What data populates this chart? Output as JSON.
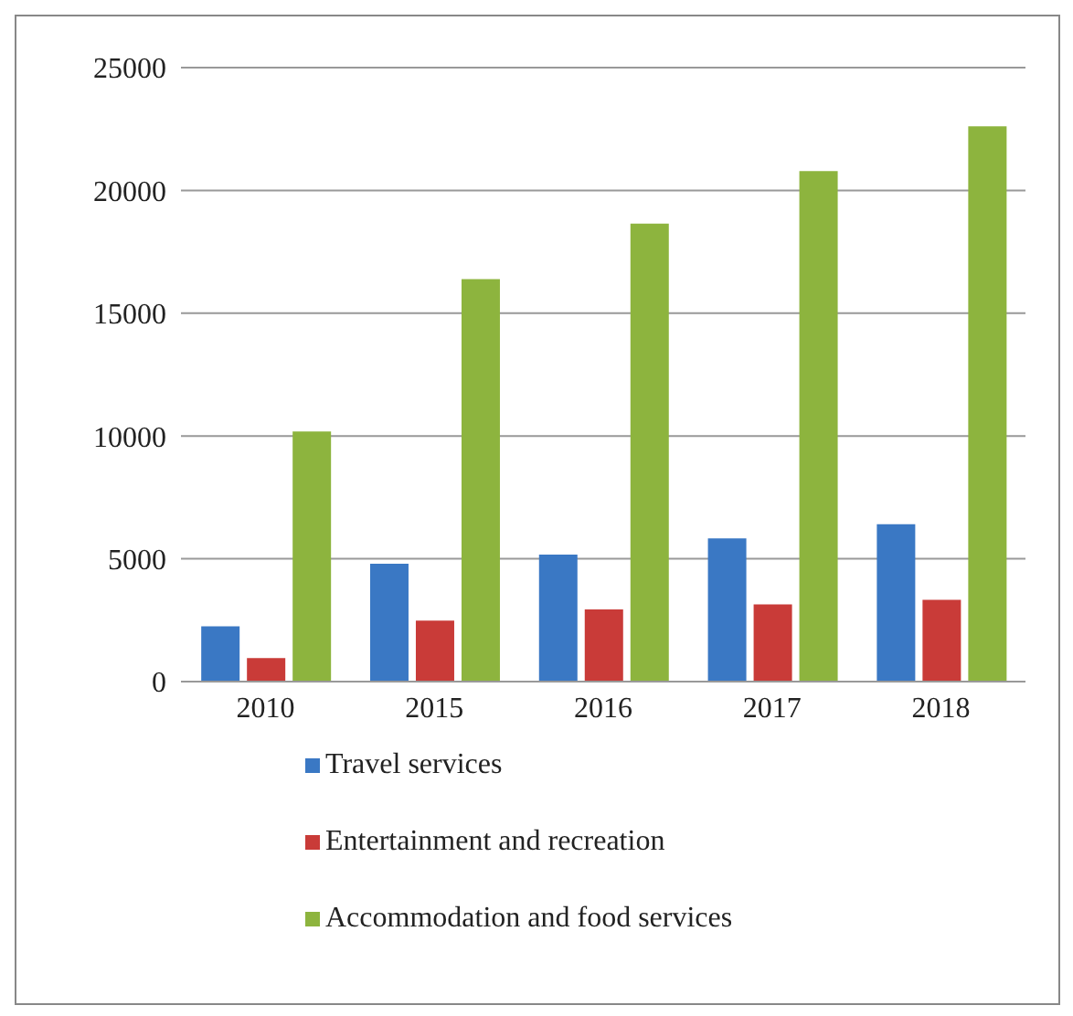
{
  "chart_data": {
    "type": "bar",
    "categories": [
      "2010",
      "2015",
      "2016",
      "2017",
      "2018"
    ],
    "series": [
      {
        "name": "Travel services",
        "color": "#3a78c4",
        "values": [
          2250,
          4800,
          5170,
          5830,
          6410
        ]
      },
      {
        "name": "Entertainment and recreation",
        "color": "#c93b38",
        "values": [
          960,
          2480,
          2940,
          3140,
          3330
        ]
      },
      {
        "name": "Accommodation and food services",
        "color": "#8db43e",
        "values": [
          10180,
          16390,
          18650,
          20790,
          22610
        ]
      }
    ],
    "ylim": [
      0,
      25000
    ],
    "yticks": [
      0,
      5000,
      10000,
      15000,
      20000,
      25000
    ],
    "grid": "y",
    "legend": "bottom"
  }
}
